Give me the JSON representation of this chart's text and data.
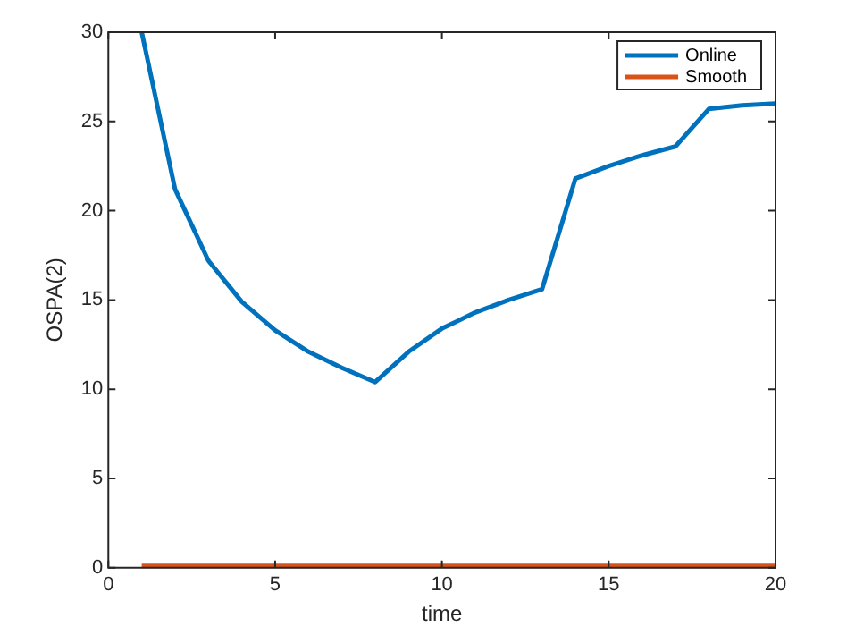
{
  "chart_data": {
    "type": "line",
    "xlabel": "time",
    "ylabel": "OSPA(2)",
    "x": [
      1,
      2,
      3,
      4,
      5,
      6,
      7,
      8,
      9,
      10,
      11,
      12,
      13,
      14,
      15,
      16,
      17,
      18,
      19,
      20
    ],
    "series": [
      {
        "name": "Online",
        "color": "#0072bd",
        "values": [
          30,
          21.2,
          17.2,
          14.9,
          13.3,
          12.1,
          11.2,
          10.4,
          12.1,
          13.4,
          14.3,
          15.0,
          15.6,
          21.8,
          22.5,
          23.1,
          23.6,
          25.7,
          25.9,
          26.0
        ]
      },
      {
        "name": "Smooth",
        "color": "#d95319",
        "values": [
          0.1,
          0.1,
          0.1,
          0.1,
          0.1,
          0.1,
          0.1,
          0.1,
          0.1,
          0.1,
          0.1,
          0.1,
          0.1,
          0.1,
          0.1,
          0.1,
          0.1,
          0.1,
          0.1,
          0.1
        ]
      }
    ],
    "xlim": [
      0,
      20
    ],
    "xticks": [
      0,
      5,
      10,
      15,
      20
    ],
    "ylim": [
      0,
      30
    ],
    "yticks": [
      0,
      5,
      10,
      15,
      20,
      25,
      30
    ],
    "grid": false,
    "legend": "top right",
    "marker": "none",
    "line_style": "solid"
  }
}
